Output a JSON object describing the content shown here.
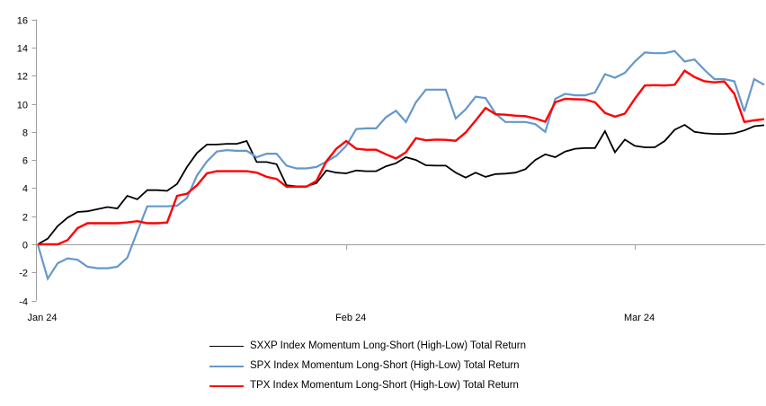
{
  "chart_data": {
    "type": "line",
    "title": "",
    "xlabel": "",
    "ylabel": "",
    "ylim": [
      -4,
      16
    ],
    "y_ticks": [
      16,
      14,
      12,
      10,
      8,
      6,
      4,
      2,
      0,
      -2,
      -4
    ],
    "x_tick_labels": [
      "Jan 24",
      "Feb 24",
      "Mar 24"
    ],
    "x_tick_positions": [
      0,
      31,
      60
    ],
    "x_points": 74,
    "grid": "zero-baseline only",
    "legend_position": "bottom",
    "axis_color": "#9D9D9D",
    "series": [
      {
        "name": "SXXP Index Momentum Long-Short (High-Low) Total Return",
        "color": "#000000",
        "values": [
          0,
          0.4,
          1.3,
          1.9,
          2.3,
          2.35,
          2.5,
          2.65,
          2.55,
          3.45,
          3.2,
          3.85,
          3.85,
          3.8,
          4.3,
          5.5,
          6.5,
          7.1,
          7.1,
          7.15,
          7.15,
          7.35,
          5.85,
          5.85,
          5.7,
          4.2,
          4.13,
          4.13,
          4.35,
          5.25,
          5.1,
          5.05,
          5.25,
          5.2,
          5.2,
          5.55,
          5.77,
          6.2,
          6.0,
          5.62,
          5.6,
          5.6,
          5.1,
          4.75,
          5.1,
          4.8,
          5.0,
          5.03,
          5.1,
          5.35,
          6.0,
          6.4,
          6.2,
          6.6,
          6.8,
          6.85,
          6.85,
          8.05,
          6.55,
          7.45,
          7.0,
          6.9,
          6.9,
          7.35,
          8.15,
          8.5,
          8.0,
          7.9,
          7.85,
          7.85,
          7.9,
          8.1,
          8.4,
          8.47
        ]
      },
      {
        "name": "SPX Index Momentum Long-Short (High-Low) Total Return",
        "color": "#6598CA",
        "values": [
          0,
          -2.45,
          -1.35,
          -1.0,
          -1.1,
          -1.6,
          -1.7,
          -1.7,
          -1.6,
          -0.95,
          0.9,
          2.7,
          2.7,
          2.7,
          2.75,
          3.3,
          4.9,
          5.9,
          6.6,
          6.7,
          6.65,
          6.65,
          6.2,
          6.45,
          6.45,
          5.6,
          5.4,
          5.4,
          5.5,
          5.88,
          6.3,
          7.0,
          8.2,
          8.25,
          8.25,
          9.05,
          9.5,
          8.7,
          10.1,
          11.0,
          11.0,
          11.0,
          8.95,
          9.6,
          10.5,
          10.4,
          9.3,
          8.7,
          8.7,
          8.7,
          8.55,
          8.0,
          10.35,
          10.7,
          10.6,
          10.6,
          10.8,
          12.1,
          11.85,
          12.2,
          13.0,
          13.65,
          13.6,
          13.6,
          13.75,
          13.0,
          13.15,
          12.4,
          11.75,
          11.75,
          11.6,
          9.45,
          11.75,
          11.35
        ]
      },
      {
        "name": "TPX Index Momentum Long-Short (High-Low) Total Return",
        "color": "#FF0000",
        "values": [
          0,
          0,
          0,
          0.3,
          1.15,
          1.5,
          1.5,
          1.5,
          1.5,
          1.55,
          1.65,
          1.5,
          1.5,
          1.55,
          3.45,
          3.6,
          4.2,
          5.05,
          5.2,
          5.2,
          5.2,
          5.2,
          5.1,
          4.8,
          4.65,
          4.1,
          4.1,
          4.1,
          4.5,
          5.9,
          6.8,
          7.35,
          6.8,
          6.73,
          6.73,
          6.4,
          6.1,
          6.55,
          7.55,
          7.4,
          7.45,
          7.43,
          7.37,
          7.95,
          8.8,
          9.7,
          9.25,
          9.22,
          9.15,
          9.12,
          8.95,
          8.72,
          10.1,
          10.35,
          10.32,
          10.3,
          10.1,
          9.35,
          9.08,
          9.3,
          10.35,
          11.3,
          11.32,
          11.3,
          11.35,
          12.35,
          11.9,
          11.6,
          11.52,
          11.58,
          10.7,
          8.7,
          8.82,
          8.9
        ]
      }
    ]
  },
  "legend": {
    "items": [
      {
        "label": "SXXP Index Momentum Long-Short (High-Low) Total Return"
      },
      {
        "label": "SPX Index Momentum Long-Short (High-Low) Total Return"
      },
      {
        "label": "TPX Index Momentum Long-Short (High-Low) Total Return"
      }
    ]
  }
}
